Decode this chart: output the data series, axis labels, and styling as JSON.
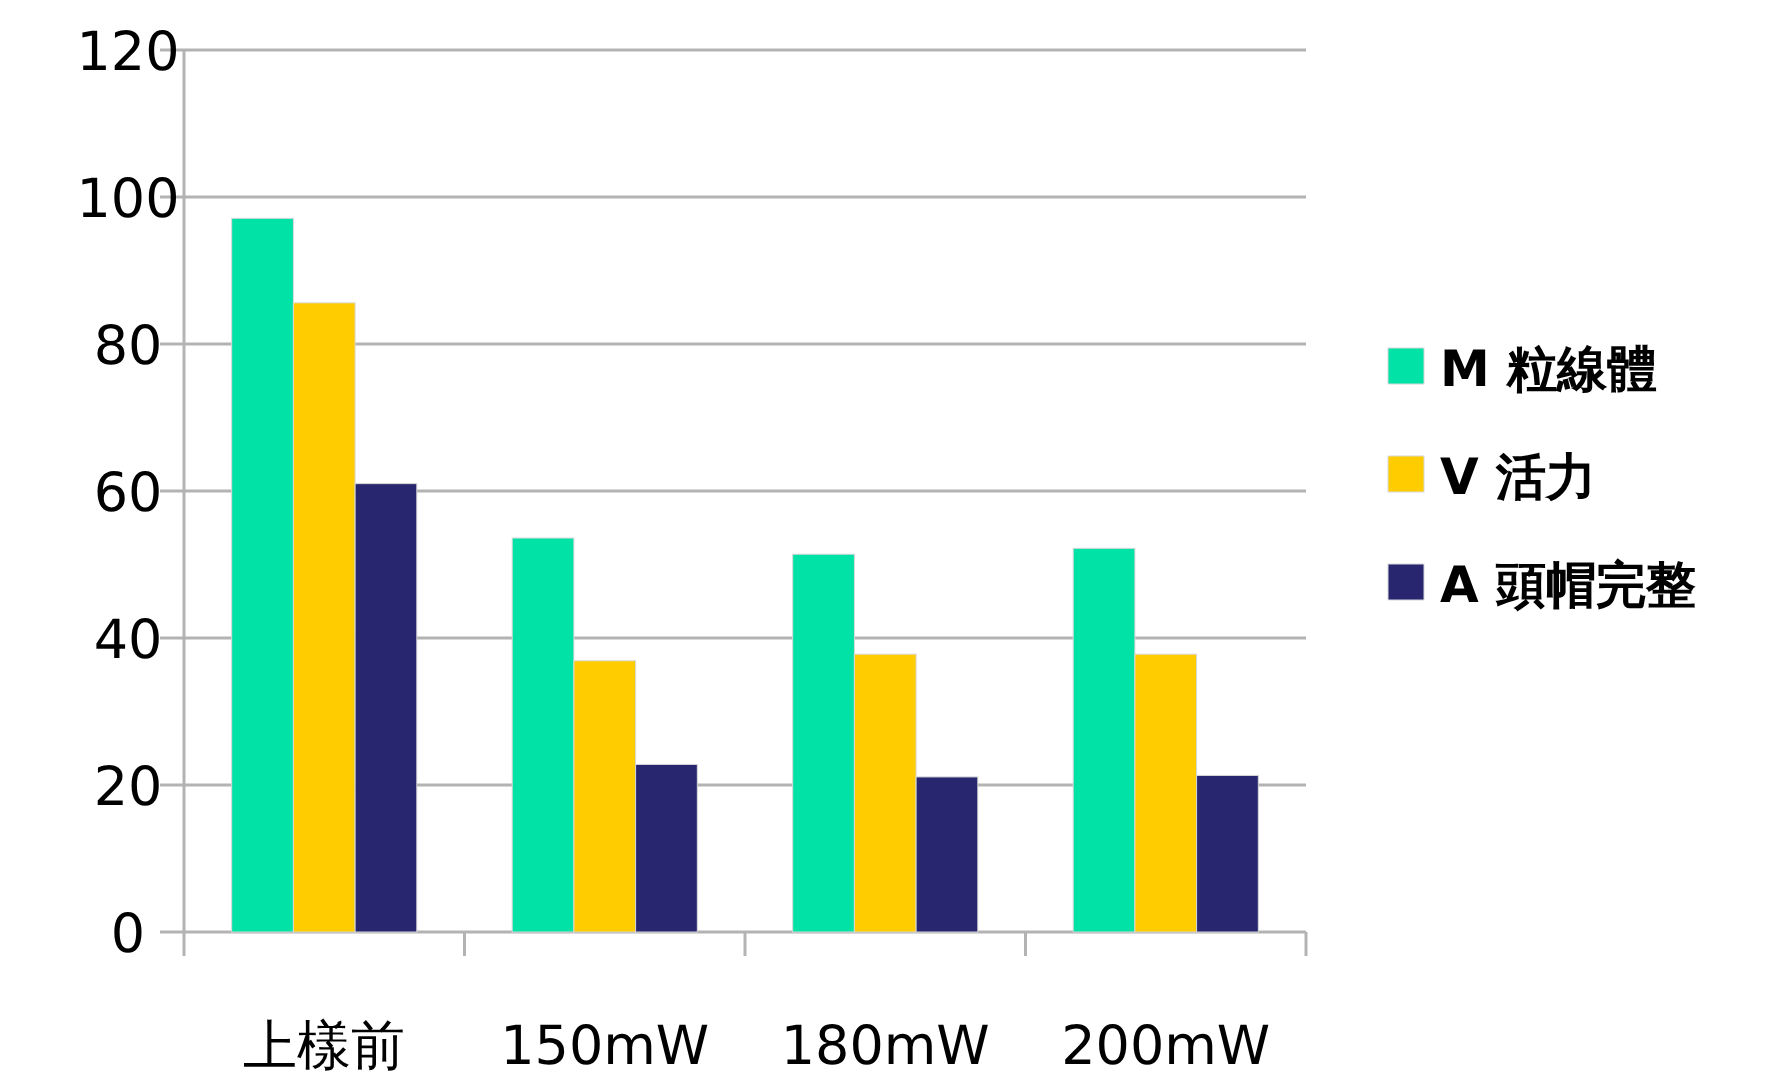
{
  "chart_data": {
    "type": "bar",
    "categories": [
      "上樣前",
      "150mW",
      "180mW",
      "200mW"
    ],
    "series": [
      {
        "name": "M 粒線體",
        "color": "#00e2a6",
        "values": [
          97.1,
          53.6,
          51.4,
          52.2
        ]
      },
      {
        "name": "V 活力",
        "color": "#ffcc00",
        "values": [
          85.6,
          36.9,
          37.8,
          37.8
        ]
      },
      {
        "name": "A 頭帽完整",
        "color": "#27266e",
        "values": [
          61.0,
          22.8,
          21.1,
          21.3
        ]
      }
    ],
    "ylim": [
      0,
      120
    ],
    "yticks": [
      0,
      20,
      40,
      60,
      80,
      100,
      120
    ],
    "grid": "y",
    "legend": "right"
  }
}
